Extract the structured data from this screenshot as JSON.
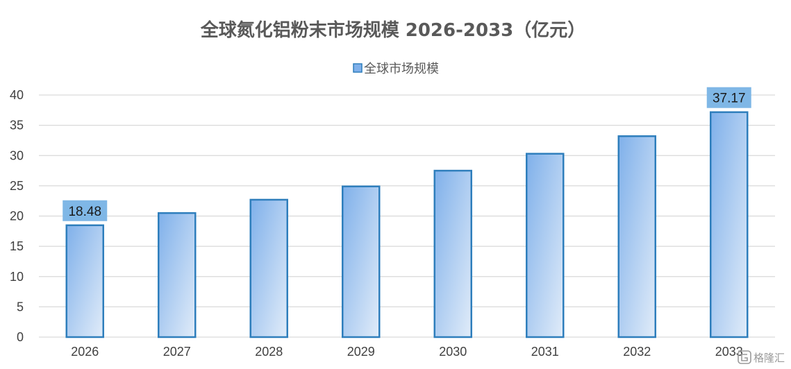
{
  "chart_data": {
    "type": "bar",
    "title": "全球氮化铝粉末市场规模 2026-2033（亿元）",
    "categories": [
      "2026",
      "2027",
      "2028",
      "2029",
      "2030",
      "2031",
      "2032",
      "2033"
    ],
    "series": [
      {
        "name": "全球市场规模",
        "values": [
          18.48,
          20.5,
          22.7,
          24.9,
          27.5,
          30.3,
          33.2,
          37.17
        ]
      }
    ],
    "data_labels": {
      "2026": "18.48",
      "2033": "37.17"
    },
    "y_ticks": [
      0,
      5,
      10,
      15,
      20,
      25,
      30,
      35,
      40
    ],
    "ylim": [
      0,
      40
    ],
    "grid": true,
    "legend_position": "top-center",
    "colors": {
      "bar_fill_start": "#7fb0ea",
      "bar_fill_end": "#e1ecf9",
      "bar_border": "#2e7ebc",
      "data_label_bg": "#7fb7e6",
      "grid": "#d9d9d9",
      "title": "#595959"
    }
  },
  "watermark": {
    "text": "格隆汇",
    "icon": "glh-logo-icon"
  }
}
